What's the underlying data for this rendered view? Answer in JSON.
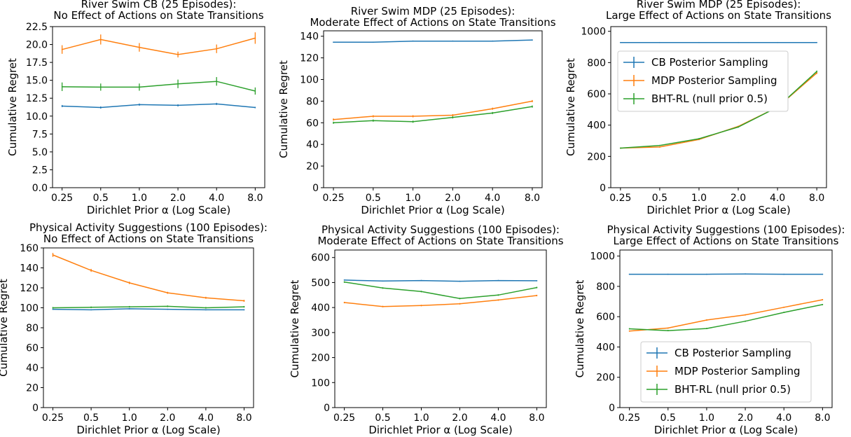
{
  "colors": {
    "cb": "#1f77b4",
    "mdp": "#ff7f0e",
    "bht": "#2ca02c"
  },
  "chart_data": [
    {
      "type": "line",
      "title": "River Swim CB (25 Episodes):",
      "subtitle": "No Effect of Actions on State Transitions",
      "xlabel": "Dirichlet Prior α (Log Scale)",
      "ylabel": "Cumulative Regret",
      "x_scale": "log",
      "x": [
        0.25,
        0.5,
        1.0,
        2.0,
        4.0,
        8.0
      ],
      "x_tick_labels": [
        "0.25",
        "0.5",
        "1.0",
        "2.0",
        "4.0",
        "8.0"
      ],
      "ylim": [
        0,
        22.5
      ],
      "y_ticks": [
        0,
        2.5,
        5,
        7.5,
        10,
        12.5,
        15,
        17.5,
        20,
        22.5
      ],
      "y_tick_labels": [
        "0.0",
        "2.5",
        "5.0",
        "7.5",
        "10.0",
        "12.5",
        "15.0",
        "17.5",
        "20.0",
        "22.5"
      ],
      "series": [
        {
          "name": "CB Posterior Sampling",
          "color": "#1f77b4",
          "values": [
            11.4,
            11.2,
            11.6,
            11.5,
            11.7,
            11.2
          ],
          "errors": [
            0.15,
            0.15,
            0.15,
            0.15,
            0.15,
            0.1
          ]
        },
        {
          "name": "MDP Posterior Sampling",
          "color": "#ff7f0e",
          "values": [
            19.3,
            20.7,
            19.6,
            18.6,
            19.4,
            20.9
          ],
          "errors": [
            0.6,
            0.7,
            0.6,
            0.4,
            0.6,
            0.8
          ]
        },
        {
          "name": "BHT-RL (null prior 0.5)",
          "color": "#2ca02c",
          "values": [
            14.1,
            14.05,
            14.05,
            14.5,
            14.85,
            13.5
          ],
          "errors": [
            0.6,
            0.5,
            0.5,
            0.6,
            0.6,
            0.5
          ]
        }
      ],
      "legend": null
    },
    {
      "type": "line",
      "title": "River Swim MDP (25 Episodes):",
      "subtitle": "Moderate Effect of Actions on State Transitions",
      "xlabel": "Dirichlet Prior α (Log Scale)",
      "ylabel": "Cumulative Regret",
      "x_scale": "log",
      "x": [
        0.25,
        0.5,
        1.0,
        2.0,
        4.0,
        8.0
      ],
      "x_tick_labels": [
        "0.25",
        "0.5",
        "1.0",
        "2.0",
        "4.0",
        "8.0"
      ],
      "ylim": [
        0,
        145
      ],
      "y_ticks": [
        0,
        20,
        40,
        60,
        80,
        100,
        120,
        140
      ],
      "y_tick_labels": [
        "0",
        "20",
        "40",
        "60",
        "80",
        "100",
        "120",
        "140"
      ],
      "series": [
        {
          "name": "CB Posterior Sampling",
          "color": "#1f77b4",
          "values": [
            134.5,
            134.5,
            135.5,
            135.5,
            135.5,
            136.5
          ],
          "errors": [
            0.3,
            0.3,
            0.3,
            0.3,
            0.3,
            0.3
          ]
        },
        {
          "name": "MDP Posterior Sampling",
          "color": "#ff7f0e",
          "values": [
            63,
            66,
            66,
            67,
            73,
            80
          ],
          "errors": [
            1,
            1,
            1,
            1,
            1,
            1
          ]
        },
        {
          "name": "BHT-RL (null prior 0.5)",
          "color": "#2ca02c",
          "values": [
            60,
            62,
            61,
            65,
            69,
            75
          ],
          "errors": [
            1,
            1,
            1,
            1,
            1,
            1
          ]
        }
      ],
      "legend": null
    },
    {
      "type": "line",
      "title": "River Swim MDP (25 Episodes):",
      "subtitle": "Large Effect of Actions on State Transitions",
      "xlabel": "Dirichlet Prior α (Log Scale)",
      "ylabel": "Cumulative Regret",
      "x_scale": "log",
      "x": [
        0.25,
        0.5,
        1.0,
        2.0,
        4.0,
        8.0
      ],
      "x_tick_labels": [
        "0.25",
        "0.5",
        "1.0",
        "2.0",
        "4.0",
        "8.0"
      ],
      "ylim": [
        0,
        1030
      ],
      "y_ticks": [
        0,
        200,
        400,
        600,
        800,
        1000
      ],
      "y_tick_labels": [
        "0",
        "200",
        "400",
        "600",
        "800",
        "1000"
      ],
      "series": [
        {
          "name": "CB Posterior Sampling",
          "color": "#1f77b4",
          "values": [
            928,
            928,
            928,
            928,
            928,
            928
          ],
          "errors": [
            1,
            1,
            1,
            1,
            1,
            1
          ]
        },
        {
          "name": "MDP Posterior Sampling",
          "color": "#ff7f0e",
          "values": [
            253,
            260,
            308,
            392,
            515,
            733
          ],
          "errors": [
            3,
            3,
            4,
            4,
            5,
            6
          ]
        },
        {
          "name": "BHT-RL (null prior 0.5)",
          "color": "#2ca02c",
          "values": [
            253,
            270,
            313,
            388,
            515,
            743
          ],
          "errors": [
            3,
            3,
            4,
            4,
            5,
            6
          ]
        }
      ],
      "legend": "upper-left",
      "legend_entries": [
        "CB Posterior Sampling",
        "MDP Posterior Sampling",
        "BHT-RL (null prior 0.5)"
      ]
    },
    {
      "type": "line",
      "title": "Physical Activity Suggestions (100 Episodes):",
      "subtitle": "No Effect of Actions on State Transitions",
      "xlabel": "Dirichlet Prior α (Log Scale)",
      "ylabel": "Cumulative Regret",
      "x_scale": "log",
      "x": [
        0.25,
        0.5,
        1.0,
        2.0,
        4.0,
        8.0
      ],
      "x_tick_labels": [
        "0.25",
        "0.5",
        "1.0",
        "2.0",
        "4.0",
        "8.0"
      ],
      "ylim": [
        0,
        160
      ],
      "y_ticks": [
        0,
        20,
        40,
        60,
        80,
        100,
        120,
        140,
        160
      ],
      "y_tick_labels": [
        "0",
        "20",
        "40",
        "60",
        "80",
        "100",
        "120",
        "140",
        "160"
      ],
      "series": [
        {
          "name": "CB Posterior Sampling",
          "color": "#1f77b4",
          "values": [
            98.5,
            98,
            99,
            98.5,
            98,
            98
          ],
          "errors": [
            0.5,
            0.5,
            0.5,
            0.5,
            0.5,
            0.5
          ]
        },
        {
          "name": "MDP Posterior Sampling",
          "color": "#ff7f0e",
          "values": [
            153,
            137.5,
            125,
            115,
            110,
            107
          ],
          "errors": [
            2,
            1.5,
            1.2,
            1,
            1,
            1
          ]
        },
        {
          "name": "BHT-RL (null prior 0.5)",
          "color": "#2ca02c",
          "values": [
            100,
            100.5,
            101,
            101.5,
            100,
            101
          ],
          "errors": [
            0.8,
            0.8,
            0.8,
            0.8,
            0.8,
            0.8
          ]
        }
      ],
      "legend": null
    },
    {
      "type": "line",
      "title": "Physical Activity Suggestions (100 Episodes):",
      "subtitle": "Moderate Effect of Actions on State Transitions",
      "xlabel": "Dirichlet Prior α (Log Scale)",
      "ylabel": "Cumulative Regret",
      "x_scale": "log",
      "x": [
        0.25,
        0.5,
        1.0,
        2.0,
        4.0,
        8.0
      ],
      "x_tick_labels": [
        "0.25",
        "0.5",
        "1.0",
        "2.0",
        "4.0",
        "8.0"
      ],
      "ylim": [
        0,
        630
      ],
      "y_ticks": [
        0,
        100,
        200,
        300,
        400,
        500,
        600
      ],
      "y_tick_labels": [
        "0",
        "100",
        "200",
        "300",
        "400",
        "500",
        "600"
      ],
      "series": [
        {
          "name": "CB Posterior Sampling",
          "color": "#1f77b4",
          "values": [
            510,
            506,
            508,
            505,
            508,
            507
          ],
          "errors": [
            1,
            1,
            1,
            1,
            1,
            1
          ]
        },
        {
          "name": "MDP Posterior Sampling",
          "color": "#ff7f0e",
          "values": [
            420,
            404,
            408,
            415,
            430,
            448
          ],
          "errors": [
            3,
            3,
            3,
            3,
            3,
            3
          ]
        },
        {
          "name": "BHT-RL (null prior 0.5)",
          "color": "#2ca02c",
          "values": [
            502,
            478,
            464,
            436,
            450,
            480
          ],
          "errors": [
            3,
            3,
            3,
            3,
            3,
            3
          ]
        }
      ],
      "legend": null
    },
    {
      "type": "line",
      "title": "Physical Activity Suggestions (100 Episodes):",
      "subtitle": "Large Effect of Actions on State Transitions",
      "xlabel": "Dirichlet Prior α (Log Scale)",
      "ylabel": "Cumulative Regret",
      "x_scale": "log",
      "x": [
        0.25,
        0.5,
        1.0,
        2.0,
        4.0,
        8.0
      ],
      "x_tick_labels": [
        "0.25",
        "0.5",
        "1.0",
        "2.0",
        "4.0",
        "8.0"
      ],
      "ylim": [
        0,
        1040
      ],
      "y_ticks": [
        0,
        200,
        400,
        600,
        800,
        1000
      ],
      "y_tick_labels": [
        "0",
        "200",
        "400",
        "600",
        "800",
        "1000"
      ],
      "series": [
        {
          "name": "CB Posterior Sampling",
          "color": "#1f77b4",
          "values": [
            880,
            880,
            880,
            882,
            880,
            880
          ],
          "errors": [
            1,
            1,
            1,
            1,
            1,
            1
          ]
        },
        {
          "name": "MDP Posterior Sampling",
          "color": "#ff7f0e",
          "values": [
            505,
            525,
            578,
            612,
            662,
            712
          ],
          "errors": [
            4,
            4,
            4,
            4,
            4,
            4
          ]
        },
        {
          "name": "BHT-RL (null prior 0.5)",
          "color": "#2ca02c",
          "values": [
            520,
            508,
            522,
            570,
            628,
            680
          ],
          "errors": [
            4,
            4,
            4,
            4,
            4,
            4
          ]
        }
      ],
      "legend": "lower-center",
      "legend_entries": [
        "CB Posterior Sampling",
        "MDP Posterior Sampling",
        "BHT-RL (null prior 0.5)"
      ]
    }
  ]
}
